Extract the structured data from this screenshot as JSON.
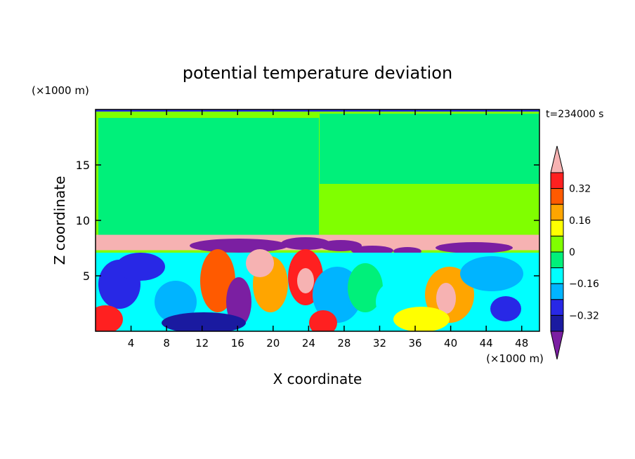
{
  "chart_data": {
    "type": "heatmap",
    "title": "potential temperature deviation",
    "xlabel": "X coordinate",
    "ylabel": "Z coordinate",
    "x_unit": "(×1000 m)",
    "y_unit": "(×1000 m)",
    "time_label": "t=234000 s",
    "xlim": [
      0,
      50
    ],
    "ylim": [
      0,
      20
    ],
    "x_ticks": [
      4,
      8,
      12,
      16,
      20,
      24,
      28,
      32,
      36,
      40,
      44,
      48
    ],
    "x_tick_labels": [
      "4",
      "8",
      "12",
      "16",
      "20",
      "24",
      "28",
      "32",
      "36",
      "40",
      "44",
      "48"
    ],
    "y_ticks": [
      5,
      10,
      15
    ],
    "y_tick_labels": [
      "5",
      "10",
      "15"
    ],
    "grid": false,
    "colorbar": {
      "labels": [
        "0.32",
        "0.16",
        "0",
        "−0.16",
        "−0.32"
      ],
      "label_values": [
        0.32,
        0.16,
        0,
        -0.16,
        -0.32
      ],
      "colors": [
        "#7b1fa2",
        "#1a1aa0",
        "#2828e6",
        "#00b4ff",
        "#00ffff",
        "#00f07a",
        "#80ff00",
        "#ffff00",
        "#ffa500",
        "#ff5a00",
        "#ff2020",
        "#f6b2b2"
      ],
      "extend": "both"
    },
    "field": {
      "background_lower": "#00f07a",
      "background_upper": "#80ff00",
      "inversion_height": 8.7
    }
  }
}
